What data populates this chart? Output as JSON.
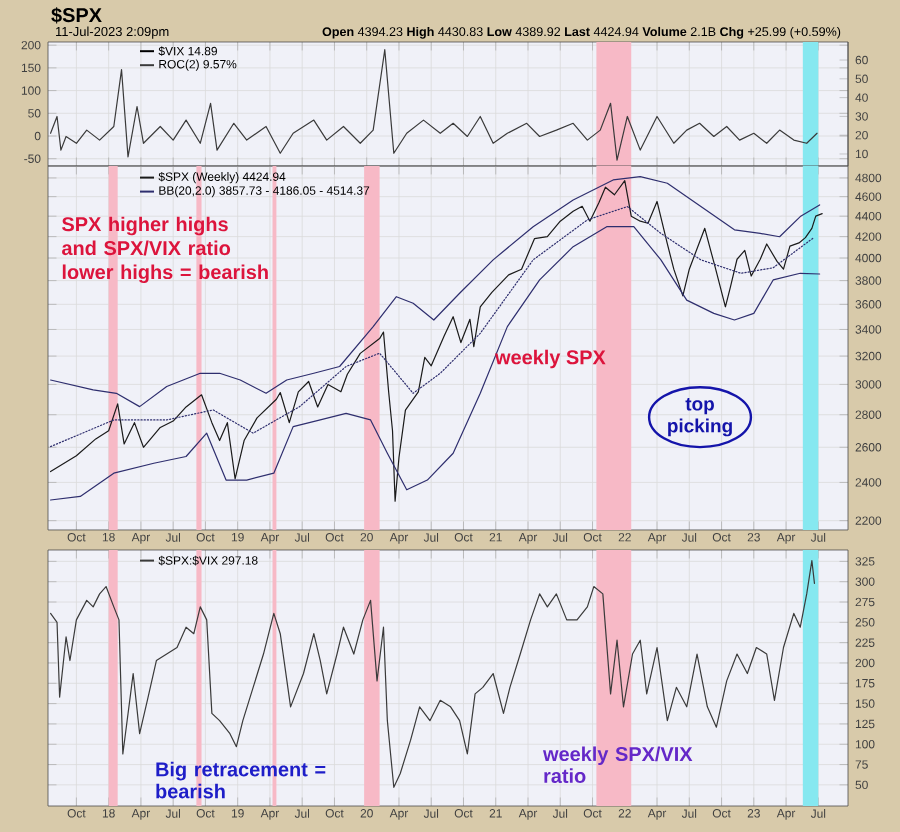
{
  "chart_data": [
    {
      "type": "line",
      "title": "$SPX",
      "subtitle": "11-Jul-2023 2:09pm",
      "annotations": [
        "**Open** 4394.23 **High** 4430.83 **Low** 4389.92 **Last** 4424.94 **Volume** 2.1B **Chg** +25.99 (+0.59%)"
      ],
      "legend_title": "$VIX 14.89",
      "legend": "top left",
      "tick_labels": "y",
      "grid": true,
      "xlim": [
        2017.53,
        2023.73
      ],
      "xticks": [
        {
          "value": 2017.75,
          "label": null
        },
        {
          "value": 2018,
          "label": null
        },
        {
          "value": 2018.25,
          "label": null
        },
        {
          "value": 2018.5,
          "label": null
        },
        {
          "value": 2018.75,
          "label": null
        },
        {
          "value": 2019,
          "label": null
        },
        {
          "value": 2019.25,
          "label": null
        },
        {
          "value": 2019.5,
          "label": null
        },
        {
          "value": 2019.75,
          "label": null
        },
        {
          "value": 2020,
          "label": null
        },
        {
          "value": 2020.25,
          "label": null
        },
        {
          "value": 2020.5,
          "label": null
        },
        {
          "value": 2020.75,
          "label": null
        },
        {
          "value": 2021,
          "label": null
        },
        {
          "value": 2021.25,
          "label": null
        },
        {
          "value": 2021.5,
          "label": null
        },
        {
          "value": 2021.75,
          "label": null
        },
        {
          "value": 2022,
          "label": null
        },
        {
          "value": 2022.25,
          "label": null
        },
        {
          "value": 2022.5,
          "label": null
        },
        {
          "value": 2022.75,
          "label": null
        },
        {
          "value": 2023,
          "label": null
        },
        {
          "value": 2023.25,
          "label": null
        },
        {
          "value": 2023.5,
          "label": null
        }
      ],
      "ylim": [
        -66,
        207
      ],
      "yticks": [
        -50,
        0,
        50,
        100,
        150,
        200
      ],
      "y2lim": [
        3.6,
        69.6
      ],
      "y2ticks": [
        10,
        20,
        30,
        40,
        50,
        60
      ],
      "bands": [
        {
          "axis": "x",
          "from": 2021.78,
          "to": 2022.05,
          "color": "#f7b9c6"
        },
        {
          "axis": "x",
          "from": 2023.38,
          "to": 2023.5,
          "color": "#86e8f0"
        }
      ],
      "series": [
        {
          "name": "ROC(2) 9.57%",
          "color": "#3a3a3a",
          "x": [
            2017.55,
            2017.6,
            2017.63,
            2017.67,
            2017.75,
            2017.83,
            2017.93,
            2018.04,
            2018.1,
            2018.15,
            2018.22,
            2018.27,
            2018.4,
            2018.5,
            2018.6,
            2018.71,
            2018.79,
            2018.84,
            2018.97,
            2019.07,
            2019.22,
            2019.33,
            2019.43,
            2019.59,
            2019.69,
            2019.82,
            2019.95,
            2020.05,
            2020.14,
            2020.21,
            2020.31,
            2020.44,
            2020.57,
            2020.67,
            2020.78,
            2020.88,
            2020.98,
            2021.09,
            2021.24,
            2021.34,
            2021.47,
            2021.6,
            2021.71,
            2021.81,
            2021.89,
            2021.94,
            2022.02,
            2022.12,
            2022.25,
            2022.38,
            2022.48,
            2022.58,
            2022.69,
            2022.79,
            2022.89,
            2023.0,
            2023.1,
            2023.2,
            2023.31,
            2023.41,
            2023.49
          ],
          "values": [
            6,
            43,
            -31,
            -1,
            -16,
            13,
            -9,
            21,
            146,
            -46,
            65,
            -16,
            21,
            -9,
            35,
            -16,
            72,
            -31,
            28,
            -9,
            21,
            -38,
            6,
            35,
            -9,
            21,
            -16,
            13,
            190,
            -38,
            6,
            35,
            6,
            28,
            -1,
            43,
            -16,
            6,
            28,
            -1,
            13,
            28,
            -9,
            13,
            72,
            -53,
            43,
            -31,
            43,
            -16,
            13,
            28,
            -1,
            21,
            -9,
            6,
            -16,
            13,
            -9,
            -16,
            6
          ]
        }
      ]
    },
    {
      "type": "line",
      "legend": "top left",
      "grid": true,
      "log": true,
      "annotations": [
        "SPX higher highs and SPX/VIX ratio lower highs = bearish",
        "weekly SPX",
        "top picking"
      ],
      "xlim": [
        2017.53,
        2023.73
      ],
      "xticks": [
        {
          "value": 2017.75,
          "label": "Oct"
        },
        {
          "value": 2018,
          "label": "18"
        },
        {
          "value": 2018.25,
          "label": "Apr"
        },
        {
          "value": 2018.5,
          "label": "Jul"
        },
        {
          "value": 2018.75,
          "label": "Oct"
        },
        {
          "value": 2019,
          "label": "19"
        },
        {
          "value": 2019.25,
          "label": "Apr"
        },
        {
          "value": 2019.5,
          "label": "Jul"
        },
        {
          "value": 2019.75,
          "label": "Oct"
        },
        {
          "value": 2020,
          "label": "20"
        },
        {
          "value": 2020.25,
          "label": "Apr"
        },
        {
          "value": 2020.5,
          "label": "Jul"
        },
        {
          "value": 2020.75,
          "label": "Oct"
        },
        {
          "value": 2021,
          "label": "21"
        },
        {
          "value": 2021.25,
          "label": "Apr"
        },
        {
          "value": 2021.5,
          "label": "Jul"
        },
        {
          "value": 2021.75,
          "label": "Oct"
        },
        {
          "value": 2022,
          "label": "22"
        },
        {
          "value": 2022.25,
          "label": "Apr"
        },
        {
          "value": 2022.5,
          "label": "Jul"
        },
        {
          "value": 2022.75,
          "label": "Oct"
        },
        {
          "value": 2023,
          "label": "23"
        },
        {
          "value": 2023.25,
          "label": "Apr"
        },
        {
          "value": 2023.5,
          "label": "Jul"
        }
      ],
      "ylim": [
        2154,
        4933
      ],
      "yticks": [
        2200,
        2400,
        2600,
        2800,
        3000,
        3200,
        3400,
        3600,
        3800,
        4000,
        4200,
        4400,
        4600,
        4800
      ],
      "bands": [
        {
          "axis": "x",
          "from": 2018.0,
          "to": 2018.07,
          "color": "#f7b9c6"
        },
        {
          "axis": "x",
          "from": 2018.68,
          "to": 2018.72,
          "color": "#f7b9c6"
        },
        {
          "axis": "x",
          "from": 2019.27,
          "to": 2019.3,
          "color": "#f7b9c6"
        },
        {
          "axis": "x",
          "from": 2019.98,
          "to": 2020.1,
          "color": "#f7b9c6"
        },
        {
          "axis": "x",
          "from": 2021.78,
          "to": 2022.05,
          "color": "#f7b9c6"
        },
        {
          "axis": "x",
          "from": 2023.38,
          "to": 2023.5,
          "color": "#86e8f0"
        }
      ],
      "series": [
        {
          "name": "$SPX (Weekly) 4424.94",
          "color": "#1a1a1a",
          "x": [
            2017.55,
            2017.75,
            2017.9,
            2018.0,
            2018.07,
            2018.12,
            2018.2,
            2018.27,
            2018.4,
            2018.5,
            2018.6,
            2018.72,
            2018.8,
            2018.86,
            2018.92,
            2018.98,
            2019.05,
            2019.15,
            2019.3,
            2019.33,
            2019.4,
            2019.47,
            2019.55,
            2019.62,
            2019.7,
            2019.8,
            2019.85,
            2019.95,
            2020.1,
            2020.13,
            2020.17,
            2020.2,
            2020.22,
            2020.25,
            2020.3,
            2020.4,
            2020.45,
            2020.5,
            2020.6,
            2020.67,
            2020.73,
            2020.8,
            2020.83,
            2020.88,
            2020.97,
            2021.1,
            2021.2,
            2021.3,
            2021.4,
            2021.5,
            2021.6,
            2021.67,
            2021.73,
            2021.8,
            2021.85,
            2021.92,
            2022.0,
            2022.05,
            2022.12,
            2022.18,
            2022.25,
            2022.33,
            2022.38,
            2022.45,
            2022.5,
            2022.62,
            2022.7,
            2022.78,
            2022.82,
            2022.87,
            2022.93,
            2022.98,
            2023.05,
            2023.1,
            2023.18,
            2023.23,
            2023.28,
            2023.35,
            2023.4,
            2023.45,
            2023.48,
            2023.53
          ],
          "values": [
            2460,
            2550,
            2650,
            2700,
            2870,
            2620,
            2750,
            2600,
            2720,
            2760,
            2850,
            2930,
            2750,
            2640,
            2750,
            2420,
            2640,
            2780,
            2900,
            2945,
            2750,
            2950,
            3020,
            2850,
            3000,
            2950,
            3070,
            3220,
            3330,
            3380,
            2950,
            2700,
            2300,
            2540,
            2830,
            2950,
            3190,
            3130,
            3350,
            3500,
            3300,
            3480,
            3270,
            3580,
            3700,
            3850,
            3900,
            4180,
            4200,
            4350,
            4450,
            4500,
            4350,
            4540,
            4700,
            4620,
            4770,
            4400,
            4350,
            4330,
            4550,
            4130,
            3900,
            3670,
            3900,
            4280,
            3920,
            3580,
            3750,
            3990,
            4070,
            3840,
            3990,
            4130,
            3970,
            3900,
            4110,
            4140,
            4190,
            4280,
            4400,
            4425
          ]
        },
        {
          "name": "BB(20,2.0) 3857.73 - 4186.05 - 4514.37",
          "color": "#2e2e6e",
          "x": [
            2017.55,
            2017.88,
            2018.06,
            2018.24,
            2018.45,
            2018.71,
            2018.86,
            2019.02,
            2019.22,
            2019.38,
            2019.59,
            2019.79,
            2020.05,
            2020.23,
            2020.36,
            2020.52,
            2020.72,
            2020.98,
            2021.29,
            2021.6,
            2021.91,
            2022.12,
            2022.33,
            2022.59,
            2022.85,
            2023.05,
            2023.2,
            2023.36,
            2023.51
          ],
          "values": [
            3030,
            2963,
            2940,
            2852,
            2986,
            3077,
            3077,
            3030,
            2940,
            3030,
            3077,
            3125,
            3422,
            3663,
            3609,
            3474,
            3692,
            3984,
            4296,
            4566,
            4778,
            4815,
            4742,
            4497,
            4265,
            4231,
            4199,
            4396,
            4514
          ]
        },
        {
          "color": "#2e2e6e",
          "x": [
            2017.55,
            2017.78,
            2018.04,
            2018.35,
            2018.6,
            2018.76,
            2018.91,
            2019.07,
            2019.28,
            2019.43,
            2019.64,
            2019.84,
            2020.03,
            2020.16,
            2020.31,
            2020.47,
            2020.67,
            2020.88,
            2021.09,
            2021.34,
            2021.6,
            2021.86,
            2022.07,
            2022.28,
            2022.48,
            2022.69,
            2022.85,
            2023.0,
            2023.15,
            2023.36,
            2023.51
          ],
          "values": [
            2306,
            2325,
            2451,
            2507,
            2546,
            2685,
            2413,
            2413,
            2451,
            2725,
            2767,
            2809,
            2767,
            2565,
            2360,
            2413,
            2565,
            2940,
            3422,
            3806,
            4105,
            4296,
            4296,
            3984,
            3635,
            3527,
            3474,
            3527,
            3806,
            3864,
            3858
          ]
        },
        {
          "color": "#2e2e6e",
          "line_style": "dotted",
          "x": [
            2017.55,
            2018.04,
            2018.45,
            2018.81,
            2019.12,
            2019.48,
            2019.84,
            2020.1,
            2020.36,
            2020.57,
            2020.88,
            2021.29,
            2021.71,
            2022.02,
            2022.28,
            2022.59,
            2022.9,
            2023.15,
            2023.46
          ],
          "values": [
            2604,
            2767,
            2767,
            2831,
            2685,
            2852,
            3125,
            3221,
            2940,
            3077,
            3370,
            3984,
            4363,
            4497,
            4231,
            3984,
            3864,
            3913,
            4186
          ]
        }
      ]
    },
    {
      "type": "line",
      "legend": "top left",
      "grid": true,
      "annotations": [
        "Big retracement = bearish",
        "weekly SPX/VIX ratio"
      ],
      "xlim": [
        2017.53,
        2023.73
      ],
      "xticks": [
        {
          "value": 2017.75,
          "label": "Oct"
        },
        {
          "value": 2018,
          "label": "18"
        },
        {
          "value": 2018.25,
          "label": "Apr"
        },
        {
          "value": 2018.5,
          "label": "Jul"
        },
        {
          "value": 2018.75,
          "label": "Oct"
        },
        {
          "value": 2019,
          "label": "19"
        },
        {
          "value": 2019.25,
          "label": "Apr"
        },
        {
          "value": 2019.5,
          "label": "Jul"
        },
        {
          "value": 2019.75,
          "label": "Oct"
        },
        {
          "value": 2020,
          "label": "20"
        },
        {
          "value": 2020.25,
          "label": "Apr"
        },
        {
          "value": 2020.5,
          "label": "Jul"
        },
        {
          "value": 2020.75,
          "label": "Oct"
        },
        {
          "value": 2021,
          "label": "21"
        },
        {
          "value": 2021.25,
          "label": "Apr"
        },
        {
          "value": 2021.5,
          "label": "Jul"
        },
        {
          "value": 2021.75,
          "label": "Oct"
        },
        {
          "value": 2022,
          "label": "22"
        },
        {
          "value": 2022.25,
          "label": "Apr"
        },
        {
          "value": 2022.5,
          "label": "Jul"
        },
        {
          "value": 2022.75,
          "label": "Oct"
        },
        {
          "value": 2023,
          "label": "23"
        },
        {
          "value": 2023.25,
          "label": "Apr"
        },
        {
          "value": 2023.5,
          "label": "Jul"
        }
      ],
      "ylim": [
        24,
        339
      ],
      "yticks": [
        50,
        75,
        100,
        125,
        150,
        175,
        200,
        225,
        250,
        275,
        300,
        325
      ],
      "bands": [
        {
          "axis": "x",
          "from": 2018.0,
          "to": 2018.07,
          "color": "#f7b9c6"
        },
        {
          "axis": "x",
          "from": 2018.68,
          "to": 2018.72,
          "color": "#f7b9c6"
        },
        {
          "axis": "x",
          "from": 2019.27,
          "to": 2019.3,
          "color": "#f7b9c6"
        },
        {
          "axis": "x",
          "from": 2019.98,
          "to": 2020.1,
          "color": "#f7b9c6"
        },
        {
          "axis": "x",
          "from": 2021.78,
          "to": 2022.05,
          "color": "#f7b9c6"
        },
        {
          "axis": "x",
          "from": 2023.38,
          "to": 2023.5,
          "color": "#86e8f0"
        }
      ],
      "series": [
        {
          "name": "$SPX:$VIX 297.18",
          "color": "#3a3a3a",
          "x": [
            2017.55,
            2017.6,
            2017.62,
            2017.67,
            2017.7,
            2017.75,
            2017.83,
            2017.88,
            2017.93,
            2017.98,
            2018.04,
            2018.08,
            2018.11,
            2018.17,
            2018.19,
            2018.24,
            2018.3,
            2018.37,
            2018.45,
            2018.53,
            2018.6,
            2018.66,
            2018.71,
            2018.76,
            2018.8,
            2018.86,
            2018.94,
            2018.99,
            2019.04,
            2019.12,
            2019.2,
            2019.28,
            2019.33,
            2019.41,
            2019.51,
            2019.59,
            2019.64,
            2019.69,
            2019.77,
            2019.82,
            2019.9,
            2019.97,
            2020.03,
            2020.08,
            2020.13,
            2020.16,
            2020.21,
            2020.26,
            2020.34,
            2020.41,
            2020.49,
            2020.57,
            2020.65,
            2020.72,
            2020.78,
            2020.84,
            2020.9,
            2020.98,
            2021.06,
            2021.11,
            2021.19,
            2021.27,
            2021.34,
            2021.4,
            2021.47,
            2021.55,
            2021.63,
            2021.71,
            2021.76,
            2021.83,
            2021.89,
            2021.94,
            2021.99,
            2022.06,
            2022.12,
            2022.17,
            2022.25,
            2022.33,
            2022.4,
            2022.48,
            2022.56,
            2022.64,
            2022.71,
            2022.79,
            2022.87,
            2022.95,
            2023.02,
            2023.1,
            2023.16,
            2023.23,
            2023.31,
            2023.36,
            2023.41,
            2023.45,
            2023.47
          ],
          "values": [
            261,
            250,
            158,
            232,
            203,
            253,
            277,
            269,
            285,
            294,
            269,
            253,
            88,
            162,
            187,
            113,
            154,
            203,
            211,
            219,
            244,
            236,
            269,
            253,
            138,
            129,
            113,
            97,
            129,
            170,
            211,
            261,
            236,
            146,
            187,
            236,
            203,
            162,
            211,
            244,
            211,
            253,
            277,
            178,
            244,
            129,
            47,
            64,
            105,
            146,
            129,
            154,
            146,
            129,
            88,
            162,
            170,
            187,
            138,
            170,
            211,
            253,
            285,
            269,
            285,
            253,
            253,
            269,
            294,
            285,
            162,
            228,
            146,
            211,
            228,
            162,
            219,
            129,
            170,
            146,
            211,
            146,
            121,
            178,
            211,
            187,
            219,
            211,
            154,
            219,
            261,
            244,
            285,
            326,
            298
          ]
        }
      ]
    }
  ]
}
